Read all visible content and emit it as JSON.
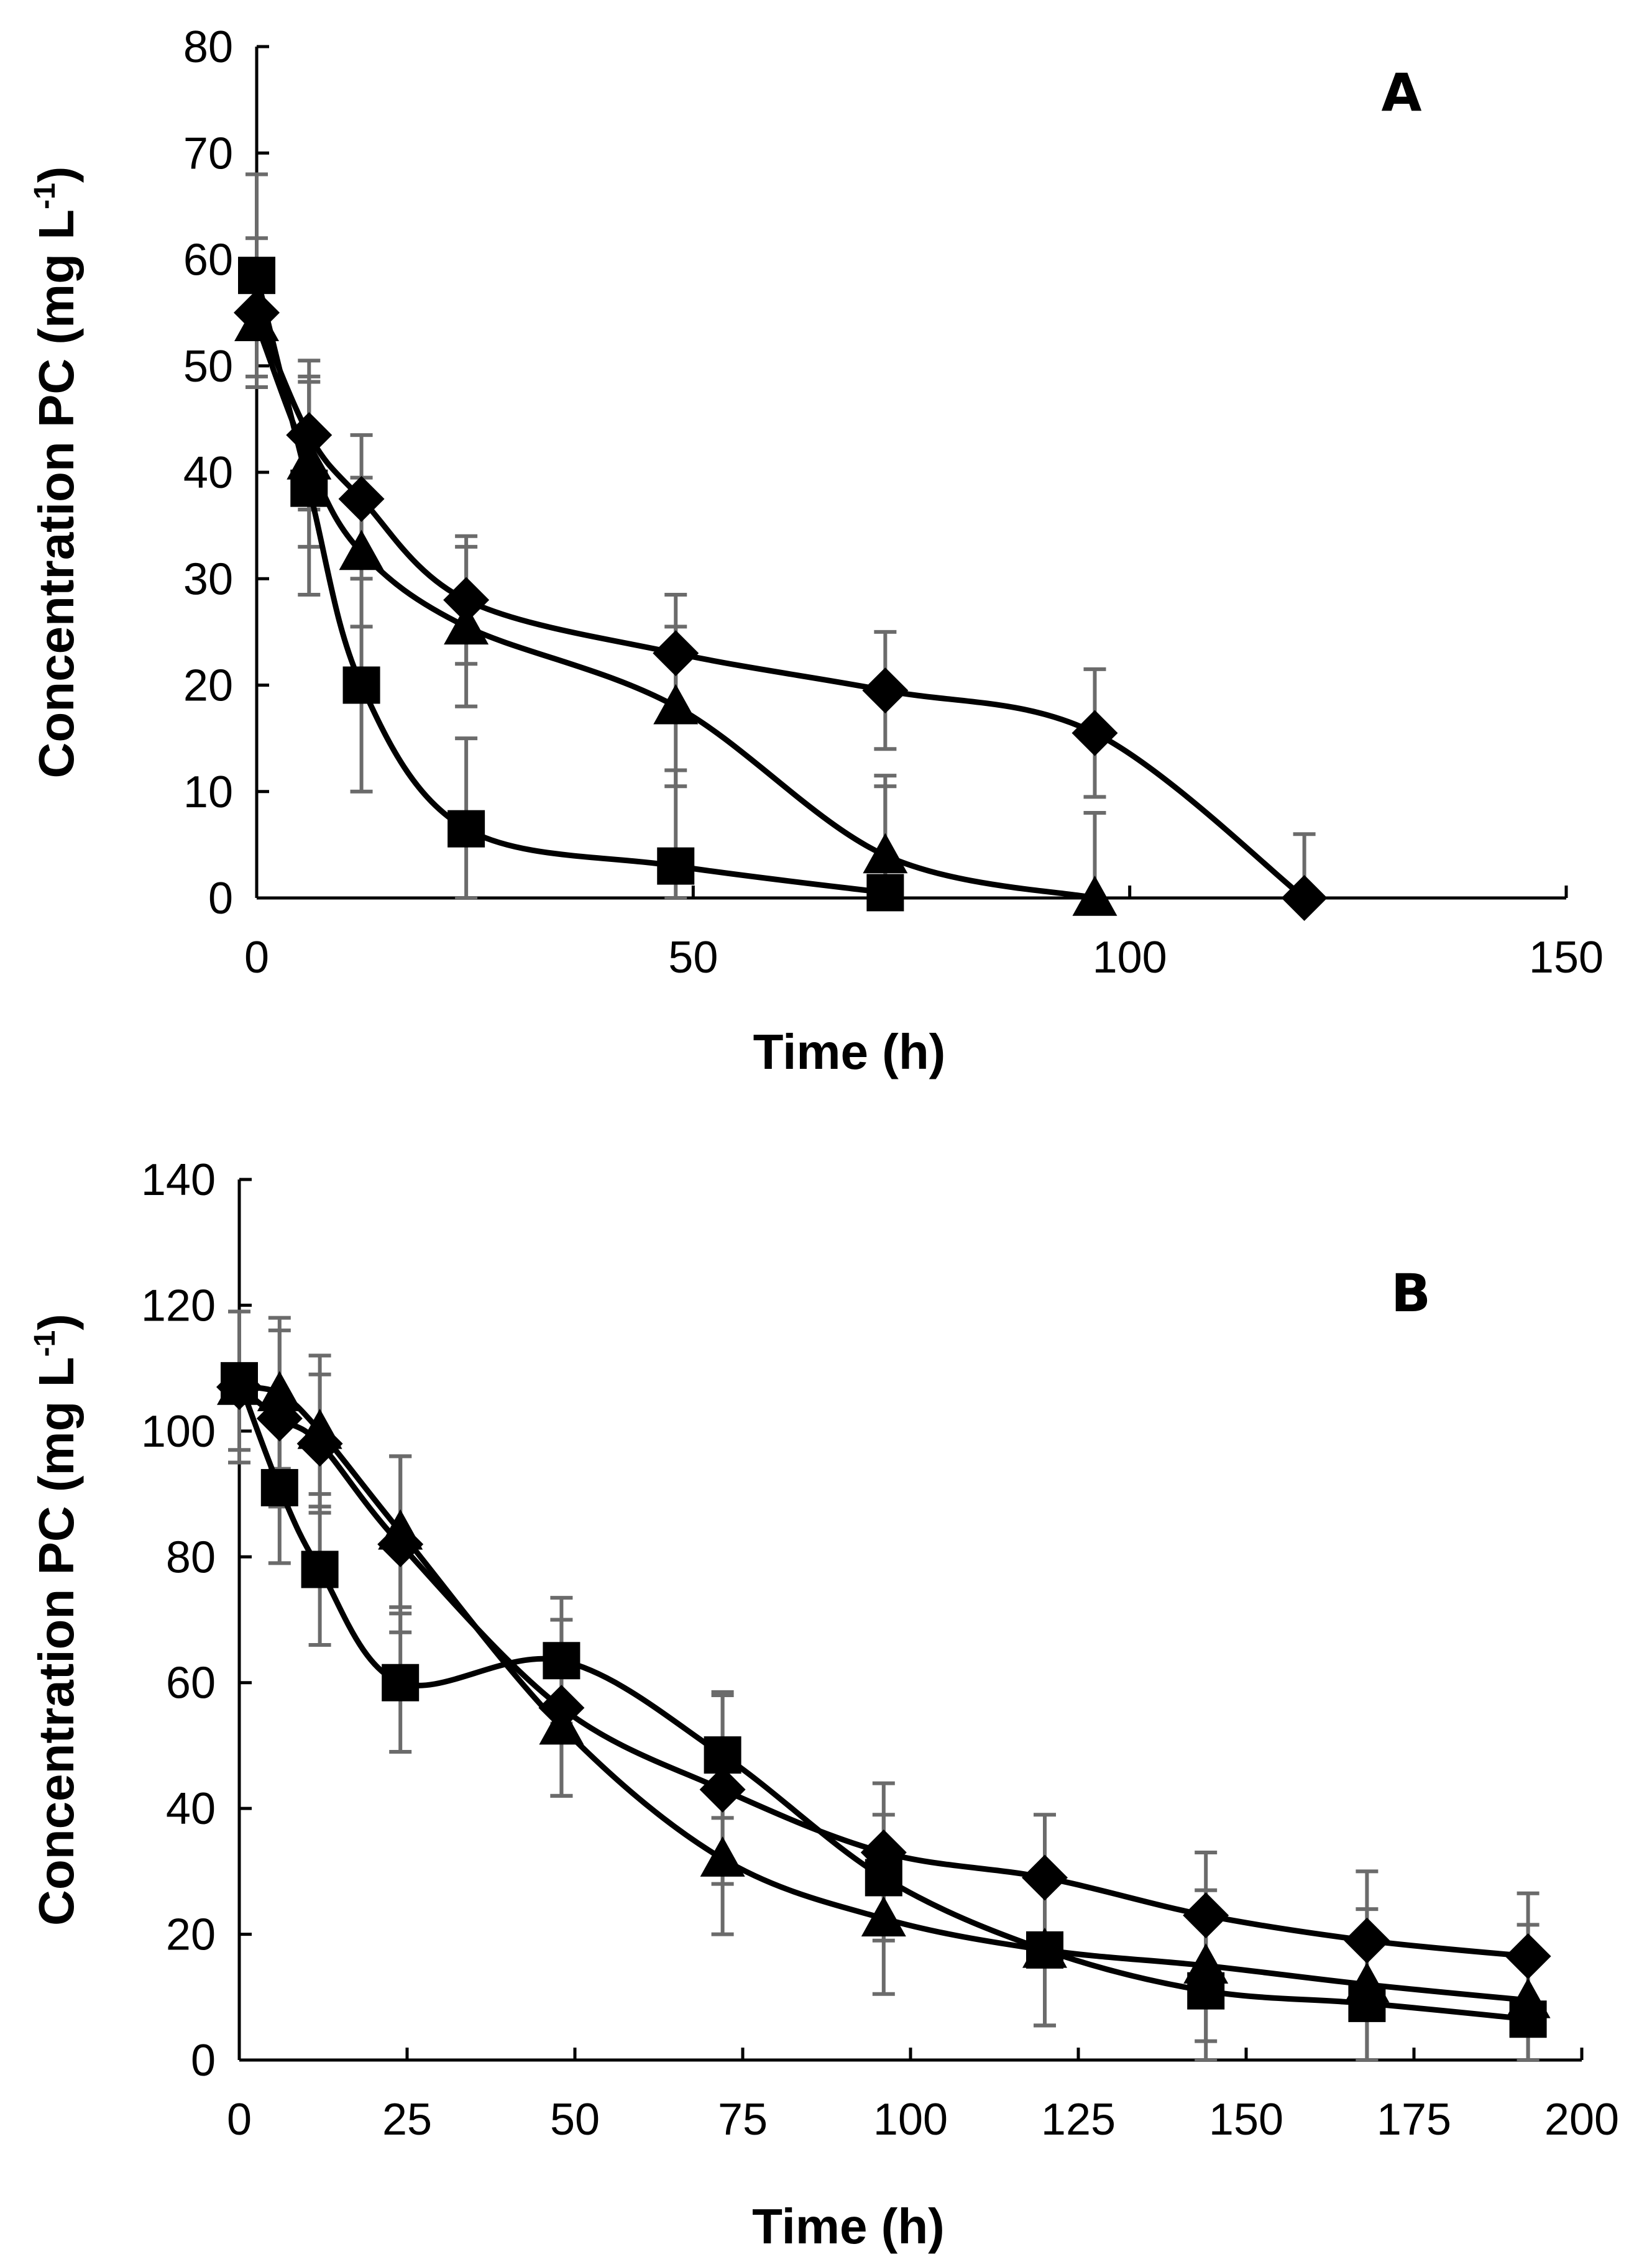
{
  "chart_data": [
    {
      "type": "line",
      "title": "A",
      "xlabel": "Time (h)",
      "ylabel": "Concentration PC (mg L",
      "ylabel_sup": "-1",
      "ylabel_close": ")",
      "xlim": [
        0,
        150
      ],
      "ylim": [
        0,
        80
      ],
      "x_ticks": [
        0,
        50,
        100,
        150
      ],
      "y_ticks": [
        0,
        10,
        20,
        30,
        40,
        50,
        60,
        70,
        80
      ],
      "grid": false,
      "series": [
        {
          "name": "diamond",
          "marker": "diamond",
          "x": [
            0,
            6,
            12,
            24,
            48,
            72,
            96,
            120
          ],
          "y": [
            55,
            43.5,
            37.5,
            28,
            23,
            19.5,
            15.5,
            0
          ],
          "err": [
            7,
            7,
            6,
            6,
            5.5,
            5.5,
            6,
            6
          ]
        },
        {
          "name": "triangle",
          "marker": "triangle",
          "x": [
            0,
            6,
            12,
            24,
            48,
            72,
            96
          ],
          "y": [
            54,
            41,
            32.5,
            25.5,
            18,
            4,
            0
          ],
          "err": [
            6,
            8,
            7,
            7.5,
            7.5,
            7.5,
            8
          ]
        },
        {
          "name": "square",
          "marker": "square",
          "x": [
            0,
            6,
            12,
            24,
            48,
            72
          ],
          "y": [
            58.5,
            38.5,
            20,
            6.5,
            3,
            0.5
          ],
          "err": [
            9.5,
            10,
            10,
            8.5,
            9,
            10
          ]
        }
      ]
    },
    {
      "type": "line",
      "title": "B",
      "xlabel": "Time (h)",
      "ylabel": "Concentration PC (mg L",
      "ylabel_sup": "-1",
      "ylabel_close": ")",
      "xlim": [
        0,
        200
      ],
      "ylim": [
        0,
        140
      ],
      "x_ticks": [
        0,
        25,
        50,
        75,
        100,
        125,
        150,
        175,
        200
      ],
      "y_ticks": [
        0,
        20,
        40,
        60,
        80,
        100,
        120,
        140
      ],
      "grid": false,
      "series": [
        {
          "name": "diamond",
          "marker": "diamond",
          "x": [
            0,
            6,
            12,
            24,
            48,
            72,
            96,
            120,
            144,
            168,
            192
          ],
          "y": [
            107,
            102,
            98,
            82,
            56,
            43,
            33,
            29,
            23,
            19,
            16.5
          ],
          "err": [
            12,
            14,
            11,
            14,
            14,
            15,
            11,
            10,
            10,
            11,
            10
          ]
        },
        {
          "name": "triangle",
          "marker": "triangle",
          "x": [
            0,
            6,
            12,
            24,
            48,
            72,
            96,
            120,
            144,
            168,
            192
          ],
          "y": [
            107,
            106,
            100,
            84,
            53,
            32,
            22.5,
            17.5,
            15,
            12,
            9.5
          ],
          "err": [
            12,
            12,
            12,
            12,
            11,
            12,
            12,
            12,
            12,
            12,
            12
          ]
        },
        {
          "name": "square",
          "marker": "square",
          "x": [
            0,
            6,
            12,
            24,
            48,
            72,
            96,
            120,
            144,
            168,
            192
          ],
          "y": [
            108,
            91,
            78,
            60,
            63.5,
            48.5,
            29,
            17.5,
            11,
            9,
            6.5
          ],
          "err": [
            11,
            12,
            12,
            11,
            10,
            10,
            10,
            12,
            11,
            10,
            10
          ]
        }
      ]
    }
  ],
  "colors": {
    "line": "#000000",
    "marker": "#000000",
    "errorbar": "#6b6b6b",
    "axis": "#000000"
  }
}
